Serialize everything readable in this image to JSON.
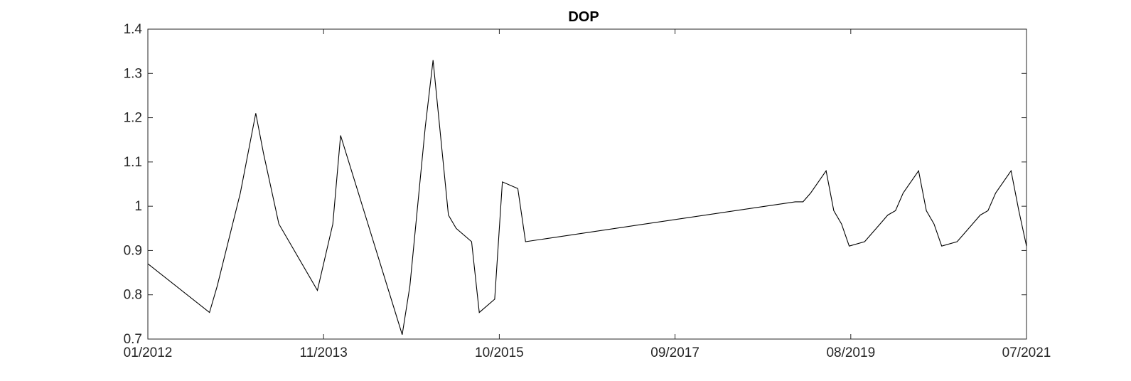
{
  "chart_data": {
    "type": "line",
    "title": "DOP",
    "xlabel": "",
    "ylabel": "",
    "x_tick_labels": [
      "01/2012",
      "11/2013",
      "10/2015",
      "09/2017",
      "08/2019",
      "07/2021"
    ],
    "y_tick_labels": [
      "0.7",
      "0.8",
      "0.9",
      "1",
      "1.1",
      "1.2",
      "1.3",
      "1.4"
    ],
    "xlim": [
      "2012-01",
      "2021-07"
    ],
    "ylim": [
      0.7,
      1.4
    ],
    "grid": false,
    "legend": "none",
    "line_color": "#000000",
    "series": [
      {
        "x": [
          "2012-01",
          "2012-09",
          "2012-10",
          "2013-01",
          "2013-03",
          "2013-04",
          "2013-06",
          "2013-11",
          "2014-01",
          "2014-02",
          "2014-10",
          "2014-11",
          "2015-01",
          "2015-02",
          "2015-04",
          "2015-05",
          "2015-07",
          "2015-08",
          "2015-10",
          "2015-11",
          "2016-01",
          "2016-02",
          "2019-01",
          "2019-02",
          "2019-03",
          "2019-05",
          "2019-06",
          "2019-07",
          "2019-08",
          "2019-10",
          "2019-11",
          "2019-12",
          "2020-01",
          "2020-02",
          "2020-03",
          "2020-05",
          "2020-06",
          "2020-07",
          "2020-08",
          "2020-10",
          "2020-11",
          "2020-12",
          "2021-01",
          "2021-02",
          "2021-03",
          "2021-05",
          "2021-06",
          "2021-07"
        ],
        "y": [
          0.87,
          0.76,
          0.82,
          1.03,
          1.21,
          1.12,
          0.96,
          0.81,
          0.96,
          1.16,
          0.71,
          0.82,
          1.18,
          1.33,
          0.98,
          0.95,
          0.92,
          0.76,
          0.79,
          1.055,
          1.04,
          0.92,
          1.01,
          1.01,
          1.03,
          1.08,
          0.99,
          0.96,
          0.91,
          0.92,
          0.94,
          0.96,
          0.98,
          0.99,
          1.03,
          1.08,
          0.99,
          0.96,
          0.91,
          0.92,
          0.94,
          0.96,
          0.98,
          0.99,
          1.03,
          1.08,
          0.99,
          0.91
        ]
      }
    ]
  }
}
